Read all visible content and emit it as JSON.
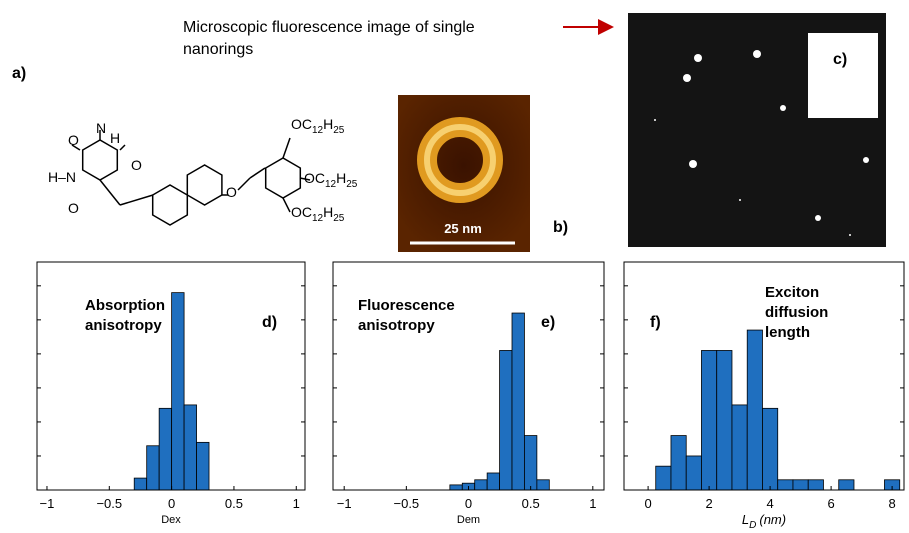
{
  "figure": {
    "panel_a": "a)",
    "panel_b": "b)",
    "panel_c": "c)",
    "caption": [
      "Microscopic fluorescence image of single",
      "nanorings"
    ],
    "scale_bar": "25 nm",
    "molecule": {
      "atoms": [
        "O",
        "H",
        "N",
        "H–N",
        "O",
        "O",
        "O"
      ],
      "substituents": [
        [
          "OC",
          "12",
          "H",
          "25"
        ],
        [
          "OC",
          "12",
          "H",
          "25"
        ],
        [
          "OC",
          "12",
          "H",
          "25"
        ]
      ]
    }
  },
  "chart_data": [
    {
      "type": "histogram",
      "xlabel": "Dex",
      "annotation": [
        "Absorption",
        "anisotropy"
      ],
      "panel_label": "d)",
      "bins": [
        -0.3,
        -0.2,
        -0.1,
        0,
        0.1,
        0.2,
        0.3
      ],
      "values": [
        0.35,
        1.3,
        2.4,
        5.8,
        2.5,
        1.4
      ],
      "color": "#1f6fbf",
      "xlim": [
        -1.08,
        1.07
      ],
      "ylim": [
        0,
        6.7
      ],
      "xticks": [
        {
          "value": -1,
          "label": "−1"
        },
        {
          "value": -0.5,
          "label": "−0.5"
        },
        0,
        0.5,
        1
      ],
      "yticks": [
        0,
        1,
        2,
        3,
        4,
        5,
        6
      ]
    },
    {
      "type": "histogram",
      "xlabel": "Dem",
      "annotation": [
        "Fluorescence",
        "anisotropy"
      ],
      "panel_label": "e)",
      "bins": [
        -0.15,
        -0.05,
        0.05,
        0.15,
        0.25,
        0.35,
        0.45,
        0.55,
        0.65
      ],
      "values": [
        0.15,
        0.2,
        0.3,
        0.5,
        4.1,
        5.2,
        1.6,
        0.3
      ],
      "color": "#1f6fbf",
      "xlim": [
        -1.09,
        1.09
      ],
      "ylim": [
        0,
        6.7
      ],
      "xticks": [
        {
          "value": -1,
          "label": "−1"
        },
        {
          "value": -0.5,
          "label": "−0.5"
        },
        0,
        0.5,
        1
      ],
      "yticks": [
        0,
        1,
        2,
        3,
        4,
        5,
        6
      ]
    },
    {
      "type": "histogram",
      "xlabel": "L",
      "xlabel_sub": "D",
      "xlabel_unit": "(nm)",
      "annotation": [
        "Exciton",
        "diffusion",
        "length"
      ],
      "panel_label": "f)",
      "bins": [
        0.25,
        0.75,
        1.25,
        1.75,
        2.25,
        2.75,
        3.25,
        3.75,
        4.25,
        4.75,
        5.25,
        5.75,
        6.25,
        6.75,
        7.25,
        7.75,
        8.25
      ],
      "values": [
        0.7,
        1.6,
        1.0,
        4.1,
        4.1,
        2.5,
        4.7,
        2.4,
        0.3,
        0.3,
        0.3,
        0,
        0.3,
        0,
        0,
        0.3
      ],
      "color": "#1f6fbf",
      "xlim": [
        -0.79,
        8.39
      ],
      "ylim": [
        0,
        6.7
      ],
      "xticks": [
        0,
        2,
        4,
        6,
        8
      ],
      "yticks": [
        0,
        1,
        2,
        3,
        4,
        5,
        6
      ]
    }
  ]
}
